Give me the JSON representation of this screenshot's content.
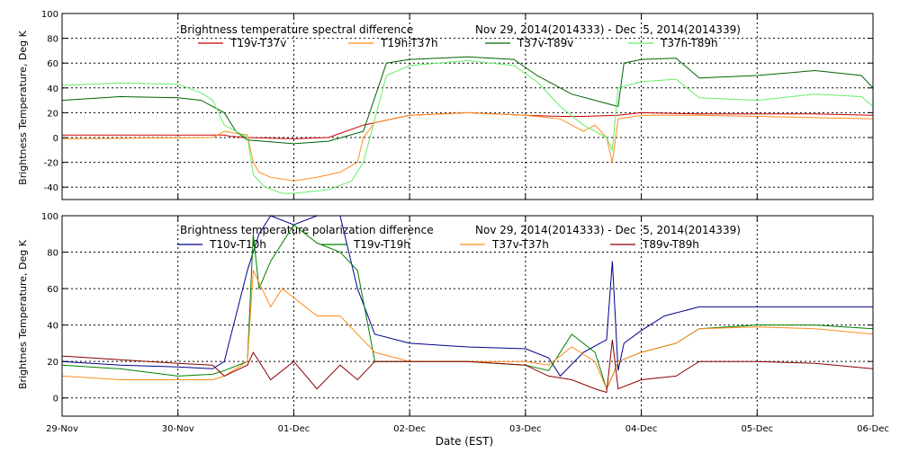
{
  "xaxis": {
    "label": "Date (EST)",
    "ticks": [
      "29-Nov",
      "30-Nov",
      "01-Dec",
      "02-Dec",
      "03-Dec",
      "04-Dec",
      "05-Dec",
      "06-Dec"
    ]
  },
  "chart_data": [
    {
      "type": "line",
      "title": "Brightness temperature spectral difference",
      "subtitle": "Nov 29, 2014(2014333) - Dec  5, 2014(2014339)",
      "ylabel": "Brightness Temperature, Deg K",
      "xlabel": "",
      "xlim": [
        0,
        7
      ],
      "ylim": [
        -50,
        100
      ],
      "yticks": [
        -40,
        -20,
        0,
        20,
        40,
        60,
        80,
        100
      ],
      "grid": true,
      "legend": "top",
      "series": [
        {
          "name": "T19v-T37v",
          "color": "#cc0000",
          "x": [
            0,
            1.3,
            1.4,
            1.45,
            1.6,
            2.0,
            2.3,
            2.6,
            3.0,
            3.5,
            4.0,
            4.3,
            4.5,
            4.8,
            5.0,
            5.5,
            6.0,
            6.5,
            7.0
          ],
          "y": [
            2,
            2,
            2,
            1,
            0,
            -1,
            0,
            10,
            18,
            20,
            18,
            17,
            17,
            18,
            20,
            19,
            19,
            19,
            18
          ]
        },
        {
          "name": "T19h-T37h",
          "color": "#ff8c1a",
          "x": [
            0,
            1.3,
            1.4,
            1.6,
            1.65,
            1.7,
            1.8,
            2.0,
            2.2,
            2.4,
            2.55,
            2.6,
            2.7,
            3.0,
            3.5,
            4.0,
            4.3,
            4.5,
            4.6,
            4.7,
            4.75,
            4.8,
            5.0,
            5.5,
            6.0,
            6.5,
            7.0
          ],
          "y": [
            -1,
            0,
            5,
            2,
            -20,
            -28,
            -32,
            -35,
            -32,
            -28,
            -20,
            0,
            12,
            18,
            20,
            18,
            15,
            5,
            10,
            0,
            -20,
            15,
            18,
            18,
            17,
            16,
            15
          ]
        },
        {
          "name": "T37v-T89v",
          "color": "#006400",
          "x": [
            0,
            0.5,
            1.0,
            1.2,
            1.4,
            1.5,
            1.6,
            2.0,
            2.3,
            2.6,
            2.8,
            3.0,
            3.5,
            3.9,
            4.1,
            4.4,
            4.6,
            4.8,
            4.85,
            5.0,
            5.3,
            5.5,
            6.0,
            6.5,
            6.9,
            7.0
          ],
          "y": [
            30,
            33,
            32,
            30,
            20,
            5,
            -2,
            -5,
            -3,
            5,
            60,
            63,
            65,
            63,
            50,
            35,
            30,
            25,
            60,
            63,
            64,
            48,
            50,
            54,
            50,
            40
          ]
        },
        {
          "name": "T37h-T89h",
          "color": "#66ee66",
          "x": [
            0,
            0.5,
            1.0,
            1.2,
            1.3,
            1.4,
            1.6,
            1.65,
            1.75,
            1.9,
            2.0,
            2.3,
            2.5,
            2.6,
            2.8,
            3.0,
            3.5,
            3.9,
            4.1,
            4.3,
            4.5,
            4.7,
            4.75,
            4.8,
            5.0,
            5.3,
            5.5,
            6.0,
            6.5,
            6.9,
            7.0
          ],
          "y": [
            42,
            44,
            43,
            36,
            30,
            10,
            0,
            -30,
            -40,
            -45,
            -45,
            -42,
            -35,
            -20,
            50,
            58,
            62,
            58,
            45,
            25,
            10,
            0,
            -10,
            40,
            45,
            47,
            32,
            30,
            35,
            33,
            25
          ]
        }
      ]
    },
    {
      "type": "line",
      "title": "Brightness temperature polarization difference",
      "subtitle": "Nov 29, 2014(2014333) - Dec  5, 2014(2014339)",
      "ylabel": "Brightnes Temperature, Deg K",
      "xlabel": "Date (EST)",
      "xlim": [
        0,
        7
      ],
      "ylim": [
        -10,
        100
      ],
      "yticks": [
        0,
        20,
        40,
        60,
        80,
        100
      ],
      "grid": true,
      "legend": "top",
      "series": [
        {
          "name": "T10v-T10h",
          "color": "#00008b",
          "x": [
            0,
            0.5,
            1.0,
            1.3,
            1.4,
            1.6,
            1.7,
            1.8,
            2.0,
            2.2,
            2.4,
            2.55,
            2.7,
            3.0,
            3.5,
            4.0,
            4.2,
            4.3,
            4.5,
            4.7,
            4.75,
            4.8,
            4.85,
            5.0,
            5.2,
            5.5,
            6.0,
            6.5,
            7.0
          ],
          "y": [
            20,
            18,
            17,
            16,
            20,
            70,
            90,
            100,
            95,
            100,
            100,
            60,
            35,
            30,
            28,
            27,
            22,
            12,
            25,
            32,
            75,
            15,
            30,
            37,
            45,
            50,
            50,
            50,
            50
          ]
        },
        {
          "name": "T19v-T19h",
          "color": "#008000",
          "x": [
            0,
            0.5,
            1.0,
            1.3,
            1.4,
            1.6,
            1.65,
            1.7,
            1.8,
            2.0,
            2.2,
            2.4,
            2.55,
            2.7,
            3.0,
            3.5,
            4.0,
            4.2,
            4.4,
            4.6,
            4.7,
            4.75,
            4.8,
            5.0,
            5.3,
            5.5,
            6.0,
            6.5,
            7.0
          ],
          "y": [
            18,
            16,
            12,
            13,
            15,
            20,
            90,
            60,
            75,
            95,
            85,
            80,
            70,
            20,
            20,
            20,
            18,
            15,
            35,
            25,
            5,
            12,
            20,
            25,
            30,
            38,
            40,
            40,
            38
          ]
        },
        {
          "name": "T37v-T37h",
          "color": "#ff8c1a",
          "x": [
            0,
            0.5,
            1.0,
            1.3,
            1.4,
            1.6,
            1.65,
            1.8,
            1.9,
            2.0,
            2.2,
            2.4,
            2.55,
            2.7,
            3.0,
            3.5,
            4.0,
            4.2,
            4.4,
            4.6,
            4.7,
            4.75,
            4.8,
            5.0,
            5.3,
            5.5,
            6.0,
            6.5,
            7.0
          ],
          "y": [
            12,
            10,
            10,
            10,
            12,
            20,
            70,
            50,
            60,
            55,
            45,
            45,
            35,
            25,
            20,
            20,
            20,
            18,
            28,
            20,
            5,
            12,
            20,
            25,
            30,
            38,
            39,
            38,
            35
          ]
        },
        {
          "name": "T89v-T89h",
          "color": "#8b0000",
          "x": [
            0,
            0.5,
            1.0,
            1.3,
            1.4,
            1.5,
            1.6,
            1.65,
            1.8,
            2.0,
            2.2,
            2.4,
            2.55,
            2.7,
            3.0,
            3.5,
            4.0,
            4.2,
            4.4,
            4.6,
            4.7,
            4.75,
            4.8,
            5.0,
            5.3,
            5.5,
            6.0,
            6.5,
            7.0
          ],
          "y": [
            23,
            21,
            19,
            18,
            12,
            15,
            18,
            25,
            10,
            20,
            5,
            18,
            10,
            20,
            20,
            20,
            18,
            12,
            10,
            5,
            3,
            32,
            5,
            10,
            12,
            20,
            20,
            19,
            16
          ]
        }
      ]
    }
  ]
}
